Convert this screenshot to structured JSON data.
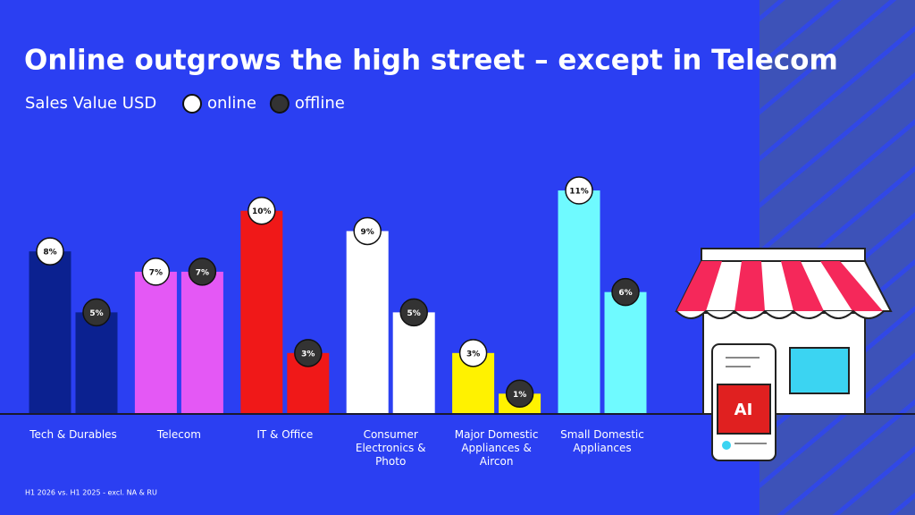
{
  "chart_data": {
    "type": "bar",
    "title": "Online outgrows the high street – except in Telecom",
    "legend_title": "Sales Value USD",
    "categories": [
      "Tech & Durables",
      "Telecom",
      "IT & Office",
      "Consumer Electronics & Photo",
      "Major Domestic Appliances & Aircon",
      "Small Domestic Appliances"
    ],
    "category_colors": [
      "#0b2190",
      "#e458f5",
      "#f01818",
      "#ffffff",
      "#fff200",
      "#6ffaff"
    ],
    "series": [
      {
        "name": "online",
        "color": "#ffffff",
        "values": [
          8,
          7,
          10,
          9,
          3,
          11
        ],
        "value_labels": [
          "8%",
          "7%",
          "10%",
          "9%",
          "3%",
          "11%"
        ]
      },
      {
        "name": "offline",
        "color": "#333333",
        "values": [
          5,
          7,
          3,
          5,
          1,
          6
        ],
        "value_labels": [
          "5%",
          "7%",
          "3%",
          "5%",
          "1%",
          "6%"
        ]
      }
    ],
    "ylim": [
      0,
      11
    ],
    "footnote": "H1 2026 vs. H1 2025 - excl. NA & RU"
  },
  "illustration": {
    "label": "AI"
  }
}
